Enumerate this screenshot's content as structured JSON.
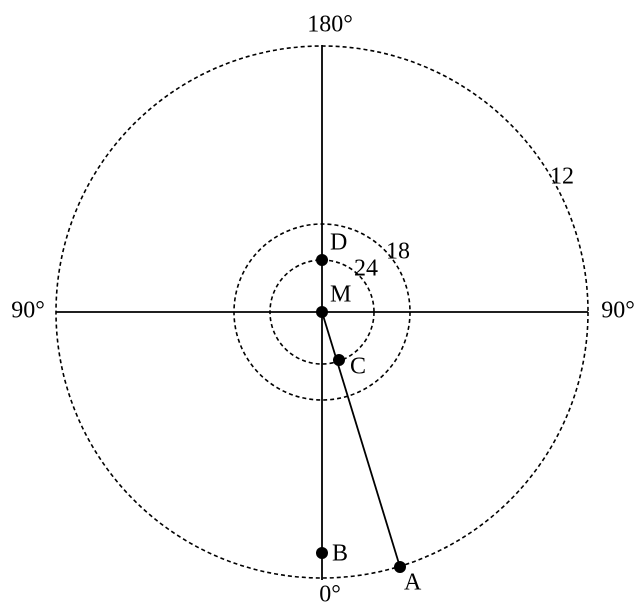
{
  "directions": {
    "top": "180°",
    "bottom": "0°",
    "left": "90°",
    "right": "90°"
  },
  "rings": [
    {
      "label": "12"
    },
    {
      "label": "18"
    },
    {
      "label": "24"
    }
  ],
  "points": [
    {
      "label": "D"
    },
    {
      "label": "M"
    },
    {
      "label": "C"
    },
    {
      "label": "B"
    },
    {
      "label": "A"
    }
  ]
}
